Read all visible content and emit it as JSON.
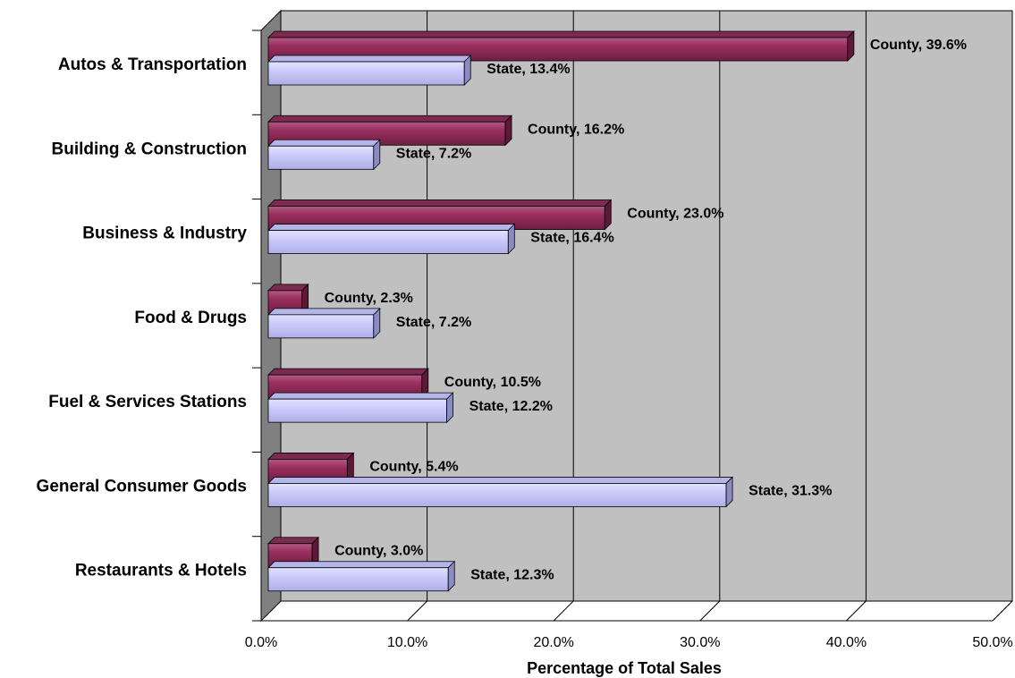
{
  "chart_data": {
    "type": "bar",
    "orientation": "horizontal",
    "three_d": true,
    "categories": [
      "Autos & Transportation",
      "Building & Construction",
      "Business & Industry",
      "Food & Drugs",
      "Fuel & Services Stations",
      "General Consumer Goods",
      "Restaurants & Hotels"
    ],
    "series": [
      {
        "name": "County",
        "values": [
          39.6,
          16.2,
          23.0,
          2.3,
          10.5,
          5.4,
          3.0
        ],
        "color": "#993366"
      },
      {
        "name": "State",
        "values": [
          13.4,
          7.2,
          16.4,
          7.2,
          12.2,
          31.3,
          12.3
        ],
        "color": "#ccccff"
      }
    ],
    "data_labels": [
      [
        "County, 39.6%",
        "County, 16.2%",
        "County, 23.0%",
        "County, 2.3%",
        "County, 10.5%",
        "County, 5.4%",
        "County, 3.0%"
      ],
      [
        "State, 13.4%",
        "State, 7.2%",
        "State, 16.4%",
        "State, 7.2%",
        "State, 12.2%",
        "State, 31.3%",
        "State, 12.3%"
      ]
    ],
    "xlabel": "Percentage of Total Sales",
    "ylabel": "",
    "xlim": [
      0,
      50
    ],
    "x_ticks": [
      "0.0%",
      "10.0%",
      "20.0%",
      "30.0%",
      "40.0%",
      "50.0%"
    ],
    "grid": true,
    "legend": "none",
    "colors": {
      "wall": "#c0c0c0",
      "side_wall": "#808080",
      "gridline": "#000000"
    }
  }
}
